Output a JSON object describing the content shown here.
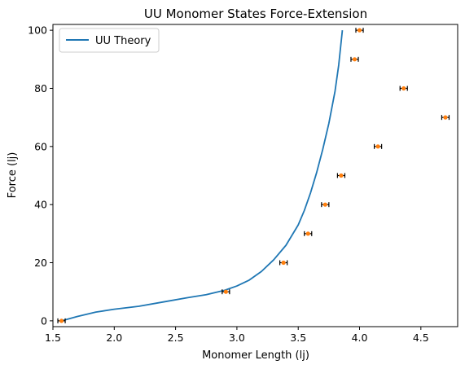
{
  "chart_data": {
    "type": "line",
    "title": "UU Monomer States Force-Extension",
    "xlabel": "Monomer Length (lj)",
    "ylabel": "Force (lj)",
    "xlim": [
      1.5,
      4.8
    ],
    "ylim": [
      -2,
      102
    ],
    "xticks": [
      "1.5",
      "2.0",
      "2.5",
      "3.0",
      "3.5",
      "4.0",
      "4.5"
    ],
    "yticks": [
      "0",
      "20",
      "40",
      "60",
      "80",
      "100"
    ],
    "grid": false,
    "legend_position": "top-left",
    "series": [
      {
        "name": "UU Theory",
        "kind": "line",
        "color": "#1f77b4",
        "x": [
          1.57,
          1.7,
          1.85,
          2.0,
          2.2,
          2.4,
          2.6,
          2.75,
          2.9,
          3.0,
          3.1,
          3.2,
          3.3,
          3.4,
          3.5,
          3.55,
          3.6,
          3.65,
          3.7,
          3.75,
          3.8,
          3.83,
          3.86
        ],
        "y": [
          0,
          1.5,
          3,
          4,
          5,
          6.5,
          8,
          9,
          10.5,
          12,
          14,
          17,
          21,
          26,
          33,
          38,
          44,
          51,
          59,
          68,
          79,
          88,
          100
        ]
      },
      {
        "name": "",
        "kind": "errorbar",
        "color": "#ff7f0e",
        "errcolor": "#000000",
        "x": [
          1.57,
          2.91,
          3.38,
          3.58,
          3.72,
          3.85,
          4.15,
          4.7,
          4.36,
          3.96,
          4.0
        ],
        "y": [
          0,
          10,
          20,
          30,
          40,
          50,
          60,
          70,
          80,
          90,
          100
        ],
        "xerr": [
          0.03,
          0.03,
          0.03,
          0.03,
          0.03,
          0.03,
          0.03,
          0.03,
          0.03,
          0.03,
          0.03
        ]
      }
    ]
  }
}
